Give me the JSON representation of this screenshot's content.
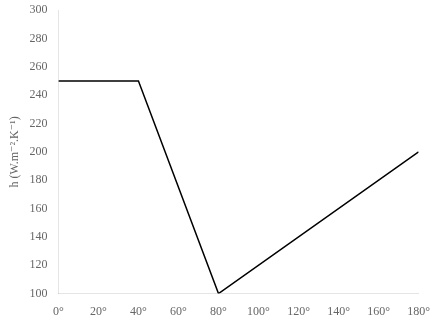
{
  "chart_data": {
    "type": "line",
    "x": [
      0,
      40,
      80,
      180
    ],
    "values": [
      250,
      250,
      100,
      200
    ],
    "color": "#000000",
    "xlim": [
      0,
      180
    ],
    "ylim": [
      100,
      300
    ],
    "xticks": [
      {
        "value": 0,
        "label": "0°"
      },
      {
        "value": 20,
        "label": "20°"
      },
      {
        "value": 40,
        "label": "40°"
      },
      {
        "value": 60,
        "label": "60°"
      },
      {
        "value": 80,
        "label": "80°"
      },
      {
        "value": 100,
        "label": "100°"
      },
      {
        "value": 120,
        "label": "120°"
      },
      {
        "value": 140,
        "label": "140°"
      },
      {
        "value": 160,
        "label": "160°"
      },
      {
        "value": 180,
        "label": "180°"
      }
    ],
    "yticks": [
      100,
      120,
      140,
      160,
      180,
      200,
      220,
      240,
      260,
      280,
      300
    ],
    "y_label": "h (W.m⁻².K⁻¹)",
    "grid": false
  }
}
